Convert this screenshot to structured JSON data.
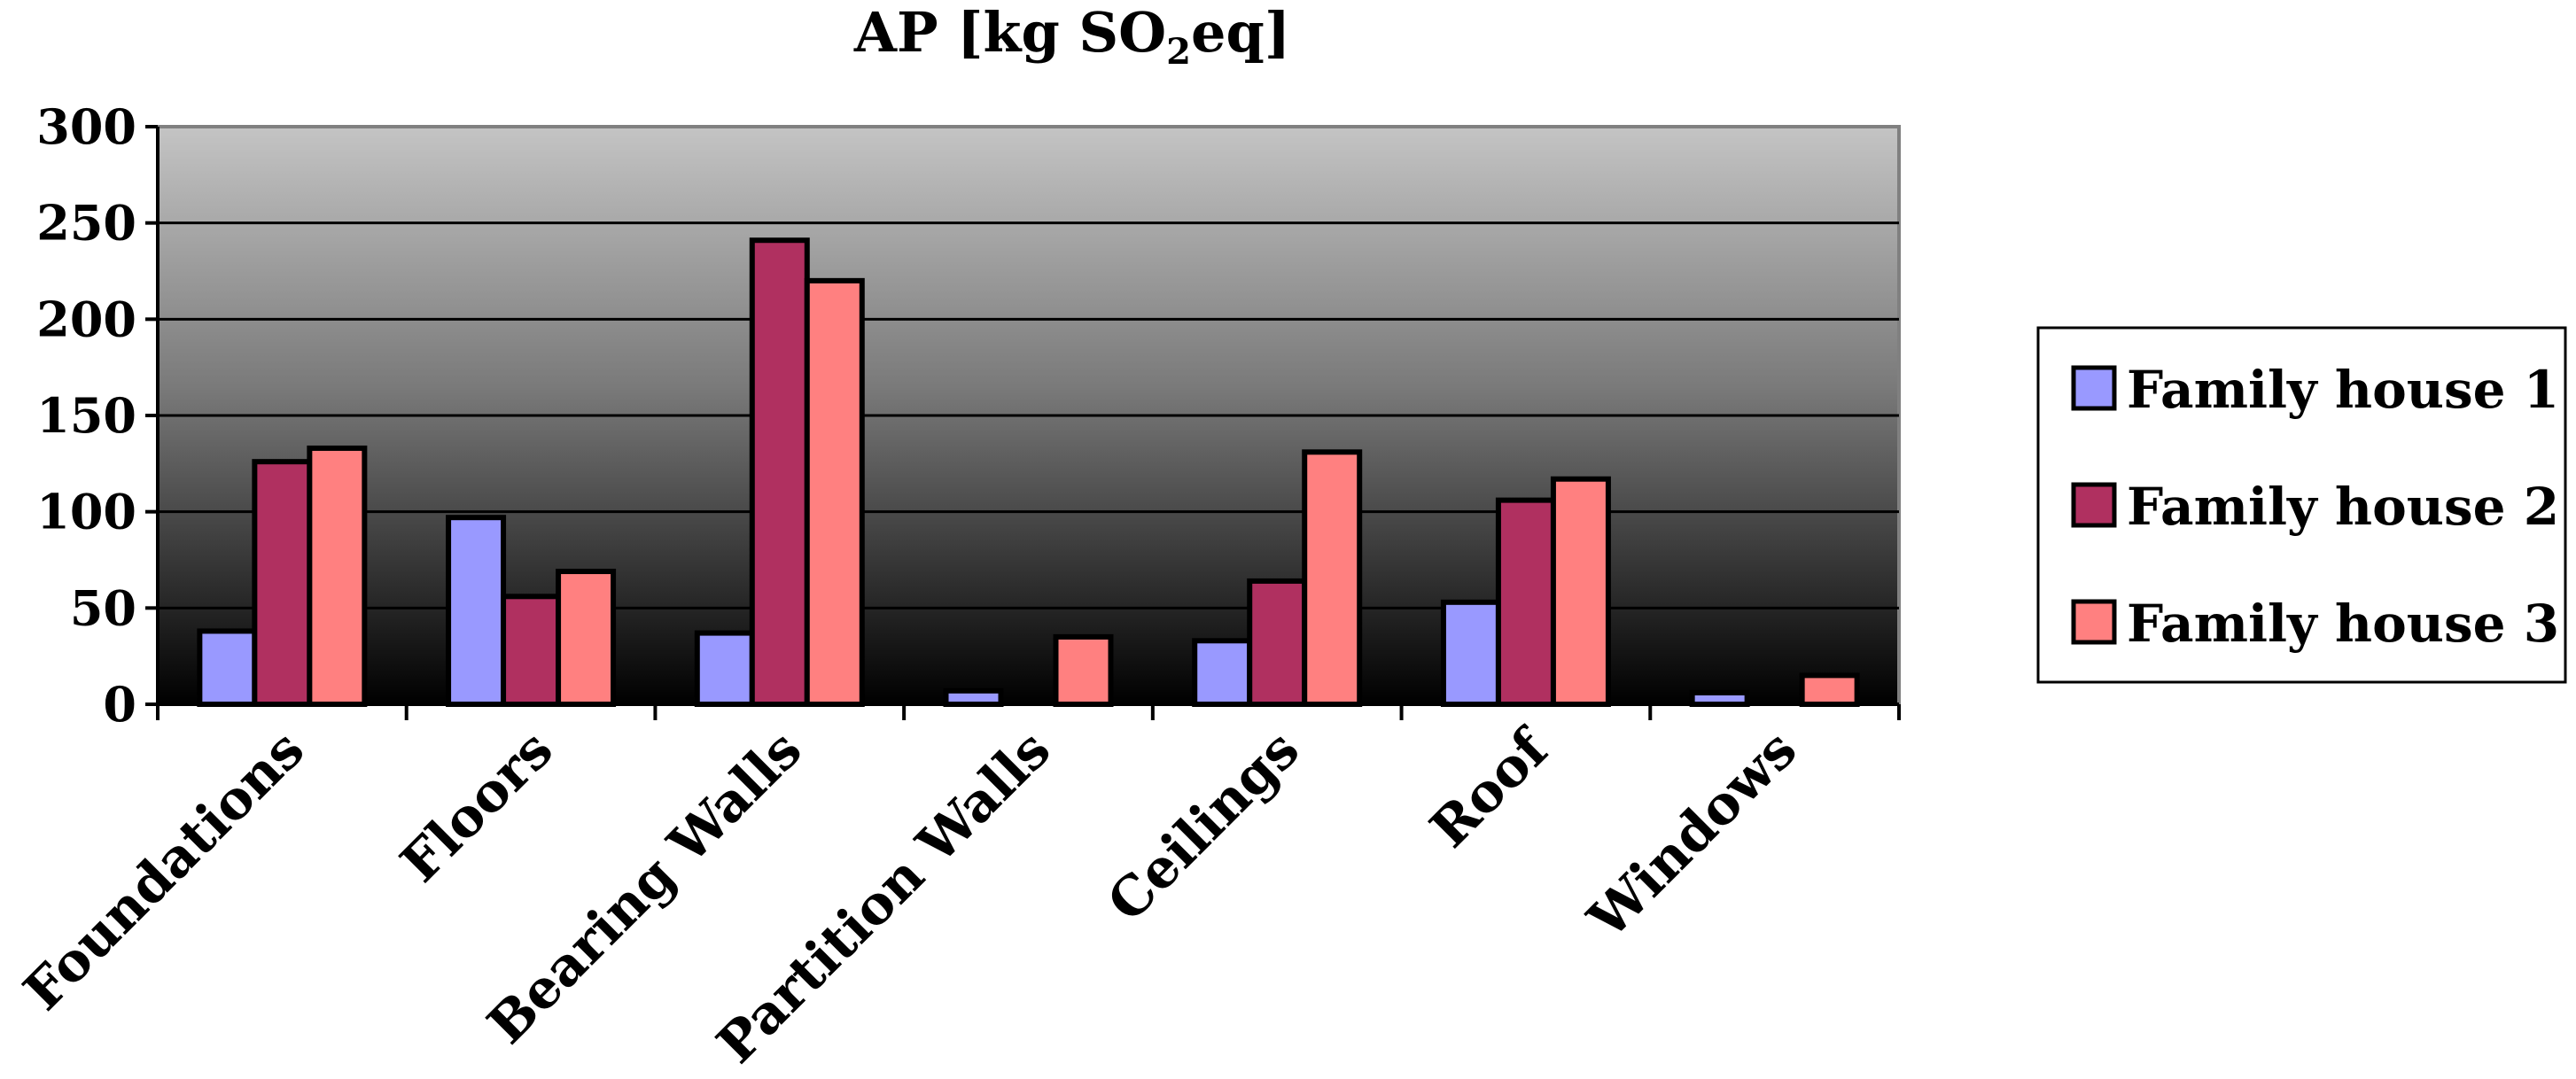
{
  "chart_data": {
    "type": "bar",
    "title_parts": {
      "pre": "AP [kg SO",
      "sub": "2",
      "post": "eq]"
    },
    "xlabel": "",
    "ylabel": "",
    "categories": [
      "Foundations",
      "Floors",
      "Bearing Walls",
      "Partition Walls",
      "Ceilings",
      "Roof",
      "Windows"
    ],
    "series": [
      {
        "name": "Family house 1",
        "color": "#9999ff",
        "values": [
          38,
          97,
          37,
          7,
          33,
          53,
          6
        ]
      },
      {
        "name": "Family house 2",
        "color": "#b03060",
        "values": [
          126,
          56,
          241,
          0,
          64,
          106,
          0
        ]
      },
      {
        "name": "Family house 3",
        "color": "#ff8080",
        "values": [
          133,
          69,
          220,
          35,
          131,
          117,
          15
        ]
      }
    ],
    "ylim": [
      0,
      300
    ],
    "yticks": [
      0,
      50,
      100,
      150,
      200,
      250,
      300
    ],
    "grid": true,
    "legend": "right"
  }
}
